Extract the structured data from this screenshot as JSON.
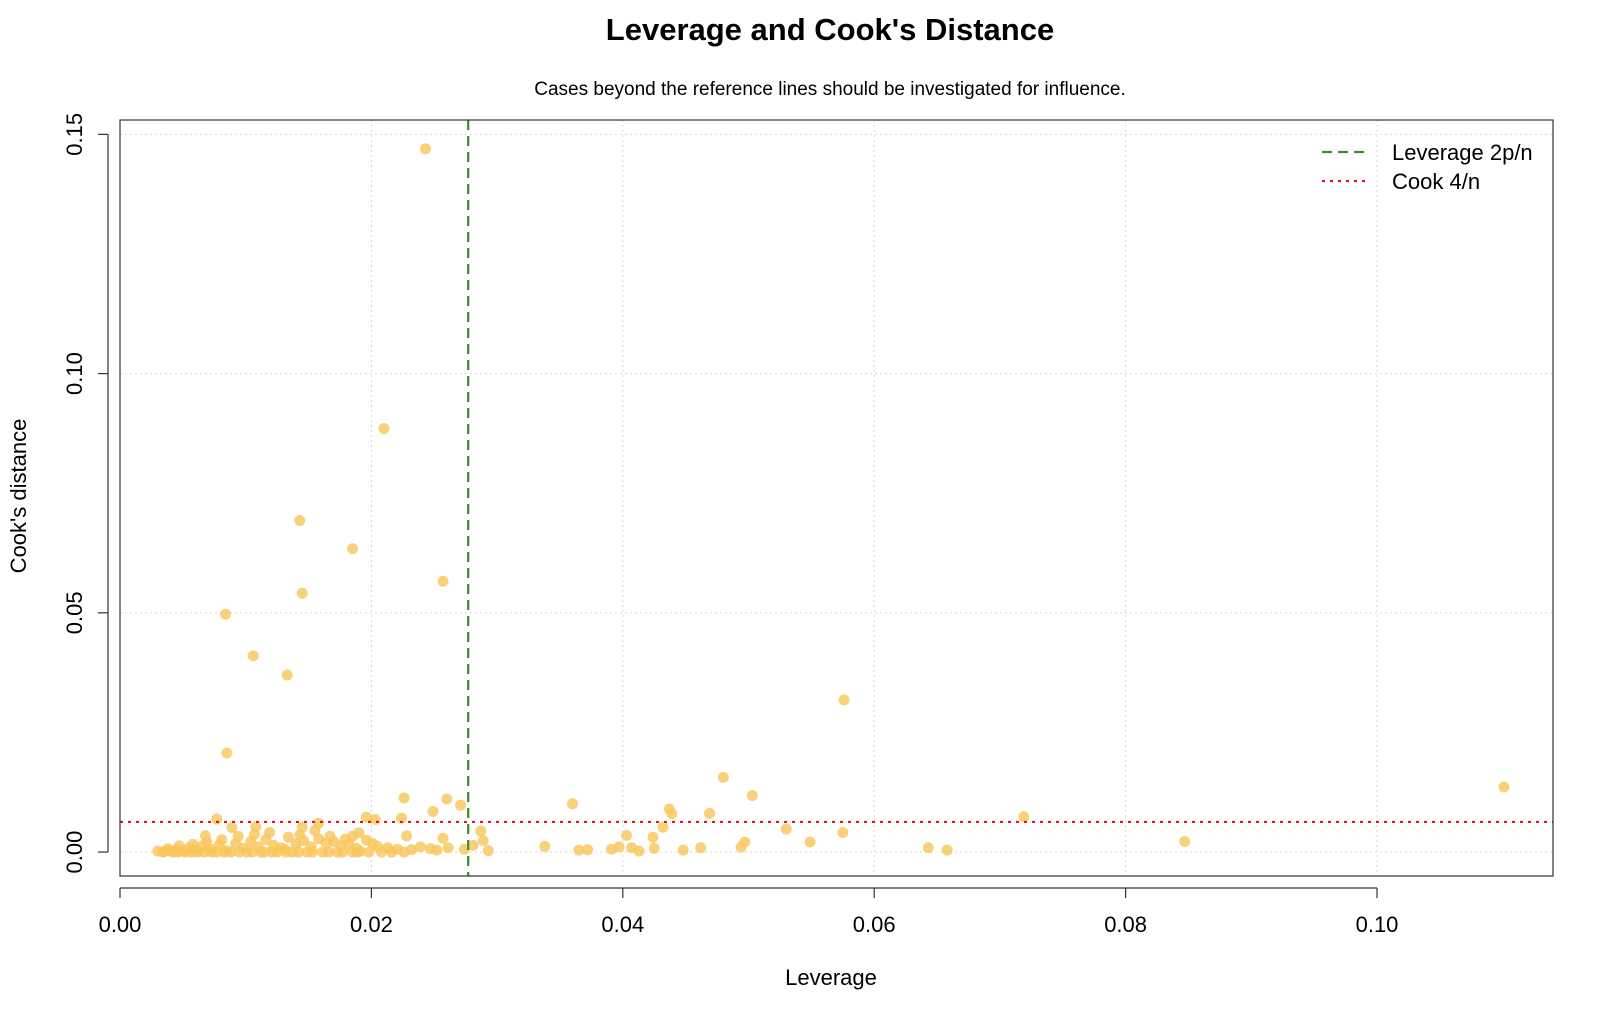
{
  "chart_data": {
    "type": "scatter",
    "title": "Leverage and Cook's Distance",
    "subtitle": "Cases beyond the reference lines should be investigated for influence.",
    "xlabel": "Leverage",
    "ylabel": "Cook's distance",
    "xlim": [
      0.0,
      0.114
    ],
    "ylim": [
      -0.005,
      0.153
    ],
    "x_ticks": [
      0.0,
      0.02,
      0.04,
      0.06,
      0.08,
      0.1
    ],
    "x_tick_labels": [
      "0.00",
      "0.02",
      "0.04",
      "0.06",
      "0.08",
      "0.10"
    ],
    "y_ticks": [
      0.0,
      0.05,
      0.1,
      0.15
    ],
    "y_tick_labels": [
      "0.00",
      "0.05",
      "0.10",
      "0.15"
    ],
    "grid": true,
    "legend_position": "top-right",
    "point_color": "#f9c65a",
    "reference_lines": [
      {
        "name": "Leverage 2p/n",
        "orientation": "vertical",
        "value": 0.0277,
        "color": "#3d8b2e",
        "style": "dashed"
      },
      {
        "name": "Cook 4/n",
        "orientation": "horizontal",
        "value": 0.0063,
        "color": "#d7191c",
        "style": "dotted"
      }
    ],
    "points": [
      [
        0.0243,
        0.147
      ],
      [
        0.021,
        0.0885
      ],
      [
        0.0143,
        0.0693
      ],
      [
        0.0185,
        0.0634
      ],
      [
        0.0257,
        0.0566
      ],
      [
        0.0145,
        0.0541
      ],
      [
        0.0084,
        0.0497
      ],
      [
        0.0106,
        0.041
      ],
      [
        0.0133,
        0.037
      ],
      [
        0.0576,
        0.0318
      ],
      [
        0.0085,
        0.0207
      ],
      [
        0.048,
        0.0156
      ],
      [
        0.1101,
        0.0136
      ],
      [
        0.0503,
        0.0118
      ],
      [
        0.0226,
        0.0113
      ],
      [
        0.026,
        0.0111
      ],
      [
        0.036,
        0.0101
      ],
      [
        0.0271,
        0.0098
      ],
      [
        0.0437,
        0.009
      ],
      [
        0.0249,
        0.0085
      ],
      [
        0.0439,
        0.008
      ],
      [
        0.0469,
        0.0081
      ],
      [
        0.0719,
        0.0074
      ],
      [
        0.0196,
        0.0073
      ],
      [
        0.0224,
        0.0071
      ],
      [
        0.0077,
        0.0069
      ],
      [
        0.0203,
        0.0068
      ],
      [
        0.0158,
        0.006
      ],
      [
        0.0108,
        0.0053
      ],
      [
        0.0089,
        0.0051
      ],
      [
        0.0145,
        0.0052
      ],
      [
        0.0432,
        0.0052
      ],
      [
        0.053,
        0.0048
      ],
      [
        0.0287,
        0.0044
      ],
      [
        0.0575,
        0.0041
      ],
      [
        0.019,
        0.004
      ],
      [
        0.0403,
        0.0035
      ],
      [
        0.0424,
        0.0031
      ],
      [
        0.0068,
        0.0034
      ],
      [
        0.0228,
        0.0034
      ],
      [
        0.0257,
        0.0029
      ],
      [
        0.0185,
        0.0033
      ],
      [
        0.0289,
        0.0024
      ],
      [
        0.0847,
        0.0022
      ],
      [
        0.0549,
        0.0021
      ],
      [
        0.0497,
        0.0021
      ],
      [
        0.0281,
        0.0014
      ],
      [
        0.0338,
        0.0012
      ],
      [
        0.0643,
        0.0009
      ],
      [
        0.0462,
        0.0009
      ],
      [
        0.0494,
        0.001
      ],
      [
        0.0397,
        0.0011
      ],
      [
        0.0407,
        0.0009
      ],
      [
        0.0425,
        0.0008
      ],
      [
        0.0261,
        0.0009
      ],
      [
        0.0391,
        0.0006
      ],
      [
        0.0372,
        0.0005
      ],
      [
        0.0365,
        0.0004
      ],
      [
        0.0448,
        0.0004
      ],
      [
        0.0658,
        0.0004
      ],
      [
        0.0413,
        0.0002
      ],
      [
        0.0293,
        0.0003
      ],
      [
        0.0274,
        0.0006
      ],
      [
        0.0252,
        0.0004
      ],
      [
        0.003,
        0.0002
      ],
      [
        0.0035,
        0.0001
      ],
      [
        0.004,
        0.0003
      ],
      [
        0.0045,
        0.0005
      ],
      [
        0.005,
        0.0002
      ],
      [
        0.0055,
        0.0009
      ],
      [
        0.006,
        0.0004
      ],
      [
        0.0065,
        0.0012
      ],
      [
        0.0072,
        0.0006
      ],
      [
        0.0079,
        0.0015
      ],
      [
        0.0085,
        0.0003
      ],
      [
        0.0092,
        0.0018
      ],
      [
        0.0098,
        0.0008
      ],
      [
        0.0104,
        0.0022
      ],
      [
        0.011,
        0.0011
      ],
      [
        0.0116,
        0.0026
      ],
      [
        0.0122,
        0.0014
      ],
      [
        0.0128,
        0.0009
      ],
      [
        0.0134,
        0.0031
      ],
      [
        0.014,
        0.0017
      ],
      [
        0.0146,
        0.0024
      ],
      [
        0.0152,
        0.0011
      ],
      [
        0.0158,
        0.0028
      ],
      [
        0.0164,
        0.0019
      ],
      [
        0.017,
        0.0022
      ],
      [
        0.0176,
        0.0013
      ],
      [
        0.0182,
        0.0016
      ],
      [
        0.0188,
        0.0008
      ],
      [
        0.0196,
        0.0025
      ],
      [
        0.0205,
        0.0012
      ],
      [
        0.0213,
        0.0009
      ],
      [
        0.0221,
        0.0006
      ],
      [
        0.0232,
        0.0005
      ],
      [
        0.0239,
        0.0011
      ],
      [
        0.0247,
        0.0007
      ],
      [
        0.0038,
        0.0007
      ],
      [
        0.0047,
        0.0013
      ],
      [
        0.0058,
        0.0016
      ],
      [
        0.0069,
        0.0021
      ],
      [
        0.0081,
        0.0026
      ],
      [
        0.0094,
        0.0033
      ],
      [
        0.0107,
        0.0037
      ],
      [
        0.0119,
        0.0041
      ],
      [
        0.0131,
        0.0006
      ],
      [
        0.0143,
        0.0036
      ],
      [
        0.0155,
        0.0045
      ],
      [
        0.0167,
        0.0033
      ],
      [
        0.0179,
        0.0027
      ],
      [
        0.0191,
        0.0002
      ],
      [
        0.0201,
        0.0018
      ],
      [
        0.0042,
        0.0
      ],
      [
        0.0052,
        0.0
      ],
      [
        0.0062,
        0.0
      ],
      [
        0.0073,
        0.0
      ],
      [
        0.0083,
        0.0
      ],
      [
        0.0095,
        0.0
      ],
      [
        0.0105,
        0.0
      ],
      [
        0.0115,
        0.0
      ],
      [
        0.0125,
        0.0
      ],
      [
        0.0137,
        0.0
      ],
      [
        0.0149,
        0.0
      ],
      [
        0.0161,
        0.0
      ],
      [
        0.0173,
        0.0
      ],
      [
        0.0185,
        0.0
      ],
      [
        0.0198,
        0.0
      ],
      [
        0.0034,
        0.0
      ],
      [
        0.0046,
        0.0
      ],
      [
        0.0057,
        0.0
      ],
      [
        0.0067,
        0.0
      ],
      [
        0.0077,
        0.0
      ],
      [
        0.0088,
        0.0
      ],
      [
        0.0101,
        0.0
      ],
      [
        0.0112,
        0.0
      ],
      [
        0.0121,
        0.0
      ],
      [
        0.0132,
        0.0
      ],
      [
        0.0142,
        0.0
      ],
      [
        0.0153,
        0.0
      ],
      [
        0.0166,
        0.0
      ],
      [
        0.0177,
        0.0
      ],
      [
        0.0189,
        0.0
      ],
      [
        0.0208,
        0.0
      ],
      [
        0.0216,
        0.0
      ],
      [
        0.0226,
        0.0
      ]
    ]
  }
}
